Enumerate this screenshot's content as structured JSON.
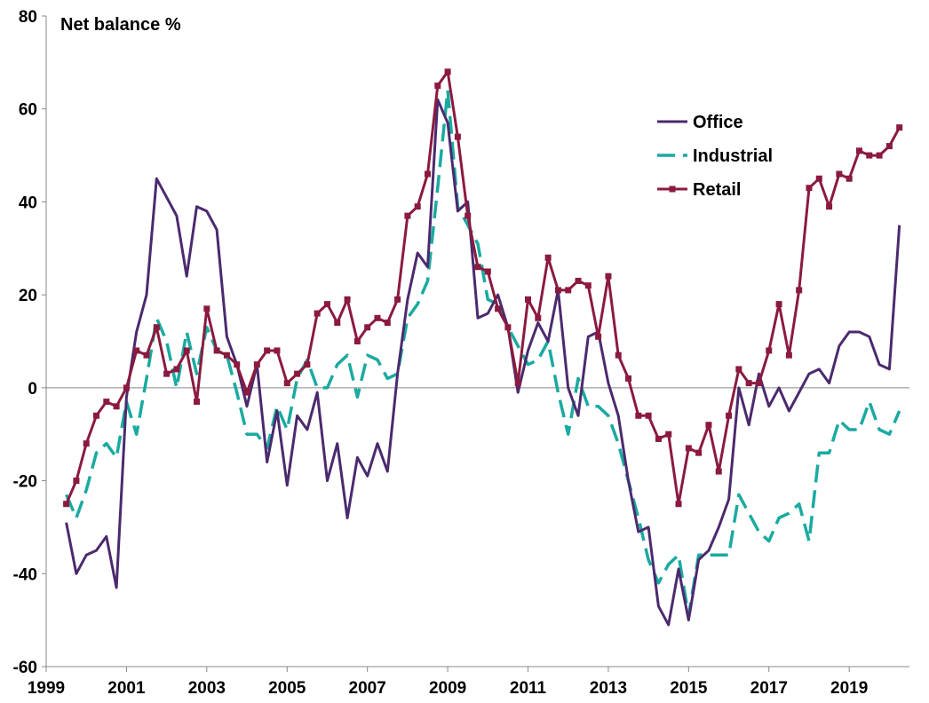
{
  "chart_data": {
    "type": "line",
    "title": "",
    "ylabel": "Net balance %",
    "xlabel": "",
    "xlim": [
      1999,
      2020.5
    ],
    "ylim": [
      -60,
      80
    ],
    "xticks": [
      1999,
      2001,
      2003,
      2005,
      2007,
      2009,
      2011,
      2013,
      2015,
      2017,
      2019
    ],
    "yticks": [
      -60,
      -40,
      -20,
      0,
      20,
      40,
      60,
      80
    ],
    "grid": false,
    "zero_line": true,
    "legend": "right",
    "series": [
      {
        "name": "Office",
        "color": "#4b2a6e",
        "style": "solid",
        "marker": "none",
        "x": [
          1999.5,
          1999.75,
          2000,
          2000.25,
          2000.5,
          2000.75,
          2001,
          2001.25,
          2001.5,
          2001.75,
          2002,
          2002.25,
          2002.5,
          2002.75,
          2003,
          2003.25,
          2003.5,
          2003.75,
          2004,
          2004.25,
          2004.5,
          2004.75,
          2005,
          2005.25,
          2005.5,
          2005.75,
          2006,
          2006.25,
          2006.5,
          2006.75,
          2007,
          2007.25,
          2007.5,
          2007.75,
          2008,
          2008.25,
          2008.5,
          2008.75,
          2009,
          2009.25,
          2009.5,
          2009.75,
          2010,
          2010.25,
          2010.5,
          2010.75,
          2011,
          2011.25,
          2011.5,
          2011.75,
          2012,
          2012.25,
          2012.5,
          2012.75,
          2013,
          2013.25,
          2013.5,
          2013.75,
          2014,
          2014.25,
          2014.5,
          2014.75,
          2015,
          2015.25,
          2015.5,
          2015.75,
          2016,
          2016.25,
          2016.5,
          2016.75,
          2017,
          2017.25,
          2017.5,
          2017.75,
          2018,
          2018.25,
          2018.5,
          2018.75,
          2019,
          2019.25,
          2019.5,
          2019.75,
          2020,
          2020.25
        ],
        "values": [
          -29,
          -40,
          -36,
          -35,
          -32,
          -43,
          -2,
          12,
          20,
          45,
          41,
          37,
          24,
          39,
          38,
          34,
          11,
          5,
          -4,
          5,
          -16,
          -5,
          -21,
          -6,
          -9,
          -1,
          -20,
          -12,
          -28,
          -15,
          -19,
          -12,
          -18,
          3,
          19,
          29,
          26,
          62,
          57,
          38,
          40,
          15,
          16,
          20,
          13,
          -1,
          8,
          14,
          10,
          21,
          0,
          -6,
          11,
          12,
          1,
          -6,
          -20,
          -31,
          -30,
          -47,
          -51,
          -39,
          -50,
          -37,
          -35,
          -30,
          -24,
          0,
          -8,
          3,
          -4,
          0,
          -5,
          -1,
          3,
          4,
          1,
          9,
          12,
          12,
          11,
          5,
          4,
          35
        ]
      },
      {
        "name": "Industrial",
        "color": "#1aaaa0",
        "style": "dashed",
        "marker": "none",
        "x": [
          1999.5,
          1999.75,
          2000,
          2000.25,
          2000.5,
          2000.75,
          2001,
          2001.25,
          2001.5,
          2001.75,
          2002,
          2002.25,
          2002.5,
          2002.75,
          2003,
          2003.25,
          2003.5,
          2003.75,
          2004,
          2004.25,
          2004.5,
          2004.75,
          2005,
          2005.25,
          2005.5,
          2005.75,
          2006,
          2006.25,
          2006.5,
          2006.75,
          2007,
          2007.25,
          2007.5,
          2007.75,
          2008,
          2008.25,
          2008.5,
          2008.75,
          2009,
          2009.25,
          2009.5,
          2009.75,
          2010,
          2010.25,
          2010.5,
          2010.75,
          2011,
          2011.25,
          2011.5,
          2011.75,
          2012,
          2012.25,
          2012.5,
          2012.75,
          2013,
          2013.25,
          2013.5,
          2013.75,
          2014,
          2014.25,
          2014.5,
          2014.75,
          2015,
          2015.25,
          2015.5,
          2015.75,
          2016,
          2016.25,
          2016.5,
          2016.75,
          2017,
          2017.25,
          2017.5,
          2017.75,
          2018,
          2018.25,
          2018.5,
          2018.75,
          2019,
          2019.25,
          2019.5,
          2019.75,
          2020,
          2020.25
        ],
        "values": [
          -23,
          -28,
          -22,
          -14,
          -12,
          -15,
          -3,
          -10,
          2,
          15,
          10,
          0,
          12,
          3,
          13,
          8,
          7,
          -1,
          -10,
          -10,
          -13,
          -4,
          -9,
          2,
          6,
          0,
          0,
          5,
          7,
          -2,
          7,
          6,
          2,
          3,
          15,
          18,
          23,
          43,
          64,
          39,
          35,
          31,
          19,
          18,
          13,
          9,
          5,
          6,
          10,
          -1,
          -10,
          2,
          -4,
          -4,
          -6,
          -12,
          -20,
          -28,
          -37,
          -42,
          -38,
          -36,
          -49,
          -36,
          -36,
          -36,
          -36,
          -23,
          -27,
          -31,
          -33,
          -28,
          -27,
          -25,
          -33,
          -14,
          -14,
          -7,
          -9,
          -9,
          -3,
          -9,
          -10,
          -5
        ]
      },
      {
        "name": "Retail",
        "color": "#8b1a3e",
        "style": "solid",
        "marker": "square",
        "x": [
          1999.5,
          1999.75,
          2000,
          2000.25,
          2000.5,
          2000.75,
          2001,
          2001.25,
          2001.5,
          2001.75,
          2002,
          2002.25,
          2002.5,
          2002.75,
          2003,
          2003.25,
          2003.5,
          2003.75,
          2004,
          2004.25,
          2004.5,
          2004.75,
          2005,
          2005.25,
          2005.5,
          2005.75,
          2006,
          2006.25,
          2006.5,
          2006.75,
          2007,
          2007.25,
          2007.5,
          2007.75,
          2008,
          2008.25,
          2008.5,
          2008.75,
          2009,
          2009.25,
          2009.5,
          2009.75,
          2010,
          2010.25,
          2010.5,
          2010.75,
          2011,
          2011.25,
          2011.5,
          2011.75,
          2012,
          2012.25,
          2012.5,
          2012.75,
          2013,
          2013.25,
          2013.5,
          2013.75,
          2014,
          2014.25,
          2014.5,
          2014.75,
          2015,
          2015.25,
          2015.5,
          2015.75,
          2016,
          2016.25,
          2016.5,
          2016.75,
          2017,
          2017.25,
          2017.5,
          2017.75,
          2018,
          2018.25,
          2018.5,
          2018.75,
          2019,
          2019.25,
          2019.5,
          2019.75,
          2020,
          2020.25
        ],
        "values": [
          -25,
          -20,
          -12,
          -6,
          -3,
          -4,
          0,
          8,
          7,
          13,
          3,
          4,
          8,
          -3,
          17,
          8,
          7,
          5,
          -1,
          5,
          8,
          8,
          1,
          3,
          5,
          16,
          18,
          14,
          19,
          10,
          13,
          15,
          14,
          19,
          37,
          39,
          46,
          65,
          68,
          54,
          37,
          26,
          25,
          17,
          13,
          1,
          19,
          15,
          28,
          21,
          21,
          23,
          22,
          11,
          24,
          7,
          2,
          -6,
          -6,
          -11,
          -10,
          -25,
          -13,
          -14,
          -8,
          -18,
          -6,
          4,
          1,
          1,
          8,
          18,
          7,
          21,
          43,
          45,
          39,
          46,
          45,
          51,
          50,
          50,
          52,
          56
        ]
      }
    ]
  }
}
